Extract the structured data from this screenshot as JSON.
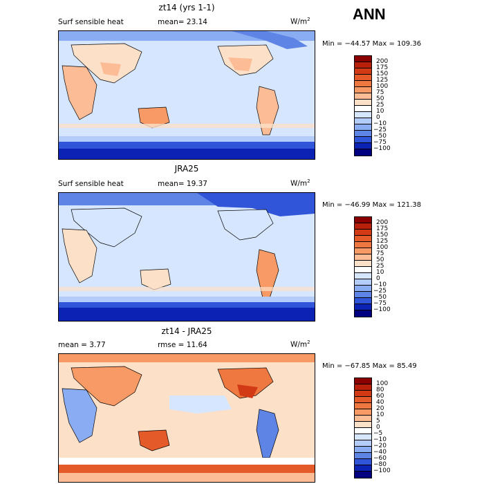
{
  "season": "ANN",
  "panels": [
    {
      "title": "zt14 (yrs 1-1)",
      "left_label": "Surf sensible heat",
      "mid_label": "mean=  23.14",
      "units": "W/m",
      "units_sup": "2",
      "minmax": "Min = −44.57 Max = 109.36",
      "levels": [
        "200",
        "175",
        "150",
        "125",
        "100",
        "75",
        "50",
        "25",
        "10",
        "0",
        "−10",
        "−25",
        "−50",
        "−75",
        "−100"
      ],
      "colors": [
        "#8b0000",
        "#b8200c",
        "#d23a16",
        "#e45a28",
        "#ef7840",
        "#f79a66",
        "#fbbc96",
        "#fde0c8",
        "#ffffff",
        "#d6e6ff",
        "#b4ccfa",
        "#8aacf2",
        "#5e84e6",
        "#3055d8",
        "#0c22b4",
        "#000080"
      ]
    },
    {
      "title": "JRA25",
      "left_label": "Surf sensible heat",
      "mid_label": "mean=  19.37",
      "units": "W/m",
      "units_sup": "2",
      "minmax": "Min = −46.99 Max = 121.38",
      "levels": [
        "200",
        "175",
        "150",
        "125",
        "100",
        "75",
        "50",
        "25",
        "10",
        "0",
        "−10",
        "−25",
        "−50",
        "−75",
        "−100"
      ],
      "colors": [
        "#8b0000",
        "#b8200c",
        "#d23a16",
        "#e45a28",
        "#ef7840",
        "#f79a66",
        "#fbbc96",
        "#fde0c8",
        "#ffffff",
        "#d6e6ff",
        "#b4ccfa",
        "#8aacf2",
        "#5e84e6",
        "#3055d8",
        "#0c22b4",
        "#000080"
      ]
    },
    {
      "title": "zt14 - JRA25",
      "left_label": "mean =   3.77",
      "mid_label": "rmse =  11.64",
      "units": "W/m",
      "units_sup": "2",
      "minmax": "Min = −67.85 Max =  85.49",
      "levels": [
        "100",
        "80",
        "60",
        "40",
        "20",
        "10",
        "5",
        "0",
        "−5",
        "−10",
        "−20",
        "−40",
        "−60",
        "−80",
        "−100"
      ],
      "colors": [
        "#8b0000",
        "#b8200c",
        "#d23a16",
        "#e45a28",
        "#ef7840",
        "#f79a66",
        "#fbbc96",
        "#fde0c8",
        "#ffffff",
        "#d6e6ff",
        "#b4ccfa",
        "#8aacf2",
        "#5e84e6",
        "#3055d8",
        "#0c22b4",
        "#000080"
      ]
    }
  ]
}
